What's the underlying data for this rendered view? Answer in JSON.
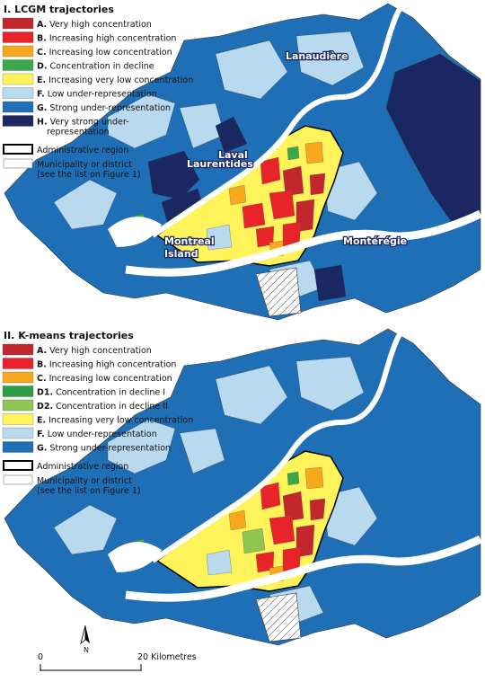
{
  "panels": [
    {
      "title": "I. LCGM trajectories",
      "items": [
        {
          "code": "A.",
          "label": "Very high concentration",
          "color": "#c1272d"
        },
        {
          "code": "B.",
          "label": "Increasing high concentration",
          "color": "#e8232a"
        },
        {
          "code": "C.",
          "label": "Increasing low concentration",
          "color": "#f7a81c"
        },
        {
          "code": "D.",
          "label": "Concentration in decline",
          "color": "#3aa84a"
        },
        {
          "code": "E.",
          "label": "Increasing very low concentration",
          "color": "#fff35c"
        },
        {
          "code": "F.",
          "label": "Low under-representation",
          "color": "#b9d9ee"
        },
        {
          "code": "G.",
          "label": "Strong under-representation",
          "color": "#1f6fb6"
        },
        {
          "code": "H.",
          "label": [
            "Very strong under-",
            "representation"
          ],
          "color": "#1b2762"
        }
      ],
      "admin": "Administrative region",
      "municipality": [
        "Municipality or district",
        "(see the list on Figure 1)"
      ],
      "regions": [
        {
          "label": [
            "Lanaudière"
          ]
        },
        {
          "label": [
            "Laval"
          ]
        },
        {
          "label": [
            "Laurentides"
          ]
        },
        {
          "label": [
            "Montreal",
            "Island"
          ]
        },
        {
          "label": [
            "Montérégie"
          ]
        }
      ]
    },
    {
      "title": "II. K-means trajectories",
      "items": [
        {
          "code": "A.",
          "label": "Very high concentration",
          "color": "#c1272d"
        },
        {
          "code": "B.",
          "label": "Increasing high concentration",
          "color": "#e8232a"
        },
        {
          "code": "C.",
          "label": "Increasing low concentration",
          "color": "#f7a81c"
        },
        {
          "code": "D1.",
          "label": "Concentration in decline I",
          "color": "#2e9e46"
        },
        {
          "code": "D2.",
          "label": "Concentration in decline II",
          "color": "#8dc653"
        },
        {
          "code": "E.",
          "label": "Increasing very low concentration",
          "color": "#fff35c"
        },
        {
          "code": "F.",
          "label": "Low under-representation",
          "color": "#b9d9ee"
        },
        {
          "code": "G.",
          "label": "Strong under-representation",
          "color": "#1f6fb6"
        }
      ],
      "admin": "Administrative region",
      "municipality": [
        "Municipality or district",
        "(see the list on Figure 1)"
      ]
    }
  ],
  "scale": {
    "start": "0",
    "end": "20 Kilometres",
    "north": "N"
  }
}
